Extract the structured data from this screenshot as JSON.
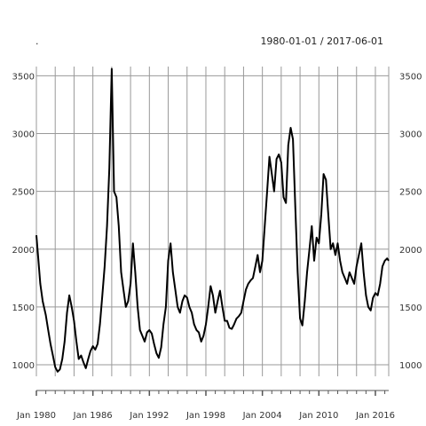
{
  "header": {
    "title": ".",
    "date_range": "1980-01-01 / 2017-06-01"
  },
  "colors": {
    "line": "#000000",
    "grid": "#999999",
    "axis": "#555555"
  },
  "chart_data": {
    "type": "line",
    "title": ".",
    "subtitle": "1980-01-01 / 2017-06-01",
    "xlabel": "",
    "ylabel": "",
    "grid": true,
    "legend": "none",
    "xlim": [
      "1980-01-01",
      "2017-06-01"
    ],
    "ylim": [
      900,
      3580
    ],
    "x_tick_labels": [
      "Jan 1980",
      "Jan 1986",
      "Jan 1992",
      "Jan 1998",
      "Jan 2004",
      "Jan 2010",
      "Jan 2016"
    ],
    "x_ticks": [
      "1980-01-01",
      "1986-01-01",
      "1992-01-01",
      "1998-01-01",
      "2004-01-01",
      "2010-01-01",
      "2016-01-01"
    ],
    "y_ticks": [
      1000,
      1500,
      2000,
      2500,
      3000,
      3500
    ],
    "y_tick_labels": [
      "1000",
      "1500",
      "2000",
      "2500",
      "3000",
      "3500"
    ],
    "series": [
      {
        "x": [
          "1980-01",
          "1980-03",
          "1980-06",
          "1980-09",
          "1981-01",
          "1981-04",
          "1981-07",
          "1981-10",
          "1982-01",
          "1982-04",
          "1982-07",
          "1982-10",
          "1983-01",
          "1983-04",
          "1983-07",
          "1983-10",
          "1984-01",
          "1984-04",
          "1984-07",
          "1984-10",
          "1985-01",
          "1985-04",
          "1985-07",
          "1985-10",
          "1986-01",
          "1986-04",
          "1986-07",
          "1986-10",
          "1987-01",
          "1987-04",
          "1987-07",
          "1987-10",
          "1988-01",
          "1988-04",
          "1988-07",
          "1988-10",
          "1989-01",
          "1989-04",
          "1989-07",
          "1989-10",
          "1990-01",
          "1990-04",
          "1990-07",
          "1990-10",
          "1991-01",
          "1991-04",
          "1991-07",
          "1991-10",
          "1992-01",
          "1992-04",
          "1992-07",
          "1992-10",
          "1993-01",
          "1993-04",
          "1993-07",
          "1993-10",
          "1994-01",
          "1994-04",
          "1994-07",
          "1994-10",
          "1995-01",
          "1995-04",
          "1995-07",
          "1995-10",
          "1996-01",
          "1996-04",
          "1996-07",
          "1996-10",
          "1997-01",
          "1997-04",
          "1997-07",
          "1997-10",
          "1998-01",
          "1998-04",
          "1998-07",
          "1998-10",
          "1999-01",
          "1999-04",
          "1999-07",
          "1999-10",
          "2000-01",
          "2000-04",
          "2000-07",
          "2000-10",
          "2001-01",
          "2001-04",
          "2001-07",
          "2001-10",
          "2002-01",
          "2002-04",
          "2002-07",
          "2002-10",
          "2003-01",
          "2003-04",
          "2003-07",
          "2003-10",
          "2004-01",
          "2004-04",
          "2004-07",
          "2004-10",
          "2005-01",
          "2005-04",
          "2005-07",
          "2005-10",
          "2006-01",
          "2006-04",
          "2006-07",
          "2006-10",
          "2007-01",
          "2007-04",
          "2007-07",
          "2007-10",
          "2008-01",
          "2008-04",
          "2008-07",
          "2008-10",
          "2009-01",
          "2009-04",
          "2009-07",
          "2009-10",
          "2010-01",
          "2010-04",
          "2010-07",
          "2010-10",
          "2011-01",
          "2011-04",
          "2011-07",
          "2011-10",
          "2012-01",
          "2012-04",
          "2012-07",
          "2012-10",
          "2013-01",
          "2013-04",
          "2013-07",
          "2013-10",
          "2014-01",
          "2014-04",
          "2014-07",
          "2014-10",
          "2015-01",
          "2015-04",
          "2015-07",
          "2015-10",
          "2016-01",
          "2016-04",
          "2016-07",
          "2016-10",
          "2017-01",
          "2017-04",
          "2017-06"
        ],
        "values": [
          2120,
          1950,
          1700,
          1550,
          1430,
          1300,
          1180,
          1080,
          980,
          940,
          960,
          1050,
          1200,
          1450,
          1600,
          1500,
          1380,
          1200,
          1050,
          1080,
          1020,
          970,
          1050,
          1120,
          1160,
          1130,
          1180,
          1350,
          1600,
          1850,
          2200,
          2700,
          3560,
          2500,
          2450,
          2200,
          1800,
          1650,
          1500,
          1550,
          1700,
          2050,
          1800,
          1500,
          1300,
          1250,
          1200,
          1280,
          1300,
          1270,
          1180,
          1100,
          1060,
          1150,
          1350,
          1500,
          1900,
          2050,
          1800,
          1650,
          1500,
          1450,
          1550,
          1600,
          1580,
          1500,
          1450,
          1350,
          1300,
          1280,
          1200,
          1250,
          1350,
          1500,
          1680,
          1600,
          1450,
          1550,
          1640,
          1500,
          1380,
          1380,
          1320,
          1310,
          1350,
          1400,
          1420,
          1450,
          1550,
          1650,
          1700,
          1730,
          1750,
          1850,
          1950,
          1800,
          1900,
          2200,
          2500,
          2800,
          2650,
          2500,
          2780,
          2820,
          2750,
          2450,
          2400,
          2900,
          3050,
          2950,
          2350,
          1800,
          1400,
          1340,
          1550,
          1800,
          2000,
          2200,
          1900,
          2100,
          2050,
          2300,
          2650,
          2600,
          2300,
          2000,
          2050,
          1950,
          2050,
          1900,
          1800,
          1750,
          1700,
          1800,
          1750,
          1700,
          1850,
          1950,
          2050,
          1800,
          1600,
          1500,
          1470,
          1580,
          1620,
          1600,
          1700,
          1850,
          1900,
          1920,
          1900
        ]
      }
    ]
  }
}
